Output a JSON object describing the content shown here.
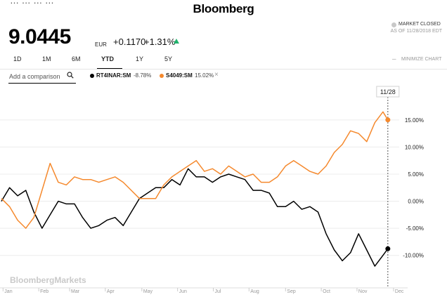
{
  "header": {
    "brand": "Bloomberg",
    "top_cut_text": "… … … …"
  },
  "quote": {
    "price": "9.0445",
    "currency": "EUR",
    "change": "+0.1170",
    "change_pct": "+1.31%",
    "market_status": "MARKET CLOSED",
    "as_of": "AS OF 11/28/2018 EDT"
  },
  "tabs": [
    {
      "label": "1D",
      "active": false
    },
    {
      "label": "1M",
      "active": false
    },
    {
      "label": "6M",
      "active": false
    },
    {
      "label": "YTD",
      "active": true
    },
    {
      "label": "1Y",
      "active": false
    },
    {
      "label": "5Y",
      "active": false
    }
  ],
  "minimize_label": "MINIMIZE CHART",
  "compare": {
    "placeholder": "Add a comparison"
  },
  "legend": [
    {
      "name": "RT4INAR:SM",
      "value": "-8.78%",
      "color": "#000000",
      "removable": false
    },
    {
      "name": "S4049:SM",
      "value": "15.02%",
      "color": "#f5892d",
      "removable": true
    }
  ],
  "chart_data": {
    "type": "line",
    "x_unit": "week of 2018",
    "xlim": [
      0,
      49
    ],
    "ylim": [
      -16,
      19
    ],
    "watermark": "BloombergMarkets",
    "cursor_label": "11/28",
    "cursor_x": 47.6,
    "y_ticks": [
      {
        "value": 15,
        "label": "15.00%"
      },
      {
        "value": 10,
        "label": "10.00%"
      },
      {
        "value": 5,
        "label": "5.00%"
      },
      {
        "value": 0,
        "label": "0.00%"
      },
      {
        "value": -5,
        "label": "-5.00%"
      },
      {
        "value": -10,
        "label": "-10.00%"
      }
    ],
    "x_ticks": [
      {
        "value": 0.2,
        "label": "Jan"
      },
      {
        "value": 4.6,
        "label": "Feb"
      },
      {
        "value": 8.4,
        "label": "Mar"
      },
      {
        "value": 12.8,
        "label": "Apr"
      },
      {
        "value": 17.3,
        "label": "May"
      },
      {
        "value": 21.7,
        "label": "Jun"
      },
      {
        "value": 26.1,
        "label": "Jul"
      },
      {
        "value": 30.5,
        "label": "Aug"
      },
      {
        "value": 35.0,
        "label": "Sep"
      },
      {
        "value": 39.4,
        "label": "Oct"
      },
      {
        "value": 43.8,
        "label": "Nov"
      },
      {
        "value": 48.3,
        "label": "Dec"
      }
    ],
    "grid": "horizontal",
    "series": [
      {
        "name": "RT4INAR:SM",
        "color": "#000000",
        "x": [
          0,
          1,
          2,
          3,
          4,
          5,
          6,
          7,
          8,
          9,
          10,
          11,
          12,
          13,
          14,
          15,
          16,
          17,
          18,
          19,
          20,
          21,
          22,
          23,
          24,
          25,
          26,
          27,
          28,
          29,
          30,
          31,
          32,
          33,
          34,
          35,
          36,
          37,
          38,
          39,
          40,
          41,
          42,
          43,
          44,
          45,
          46,
          47,
          47.6
        ],
        "values": [
          0.0,
          2.5,
          1.0,
          2.0,
          -2.0,
          -5.0,
          -2.5,
          0.0,
          -0.5,
          -0.5,
          -3.0,
          -5.0,
          -4.5,
          -3.5,
          -3.0,
          -4.5,
          -2.0,
          0.5,
          1.5,
          2.5,
          2.5,
          4.0,
          3.0,
          6.0,
          4.5,
          4.5,
          3.5,
          4.5,
          5.0,
          4.5,
          4.0,
          2.0,
          2.0,
          1.5,
          -1.0,
          -1.0,
          0.0,
          -1.5,
          -1.0,
          -2.0,
          -6.0,
          -9.0,
          -11.0,
          -9.5,
          -6.0,
          -9.0,
          -12.0,
          -10.0,
          -8.78
        ]
      },
      {
        "name": "S4049:SM",
        "color": "#f5892d",
        "x": [
          0,
          1,
          2,
          3,
          4,
          5,
          6,
          7,
          8,
          9,
          10,
          11,
          12,
          13,
          14,
          15,
          16,
          17,
          18,
          19,
          20,
          21,
          22,
          23,
          24,
          25,
          26,
          27,
          28,
          29,
          30,
          31,
          32,
          33,
          34,
          35,
          36,
          37,
          38,
          39,
          40,
          41,
          42,
          43,
          44,
          45,
          46,
          47,
          47.6
        ],
        "values": [
          0.5,
          -1.0,
          -3.5,
          -5.0,
          -3.0,
          2.0,
          7.0,
          3.5,
          3.0,
          4.5,
          4.0,
          4.0,
          3.5,
          4.0,
          4.5,
          3.5,
          2.0,
          0.5,
          0.5,
          0.5,
          3.0,
          4.5,
          5.5,
          6.5,
          7.5,
          5.5,
          6.0,
          5.0,
          6.5,
          5.5,
          4.5,
          5.0,
          3.5,
          3.5,
          4.5,
          6.5,
          7.5,
          6.5,
          5.5,
          5.0,
          6.5,
          9.0,
          10.5,
          13.0,
          12.5,
          11.0,
          14.5,
          16.5,
          15.02
        ]
      }
    ]
  }
}
